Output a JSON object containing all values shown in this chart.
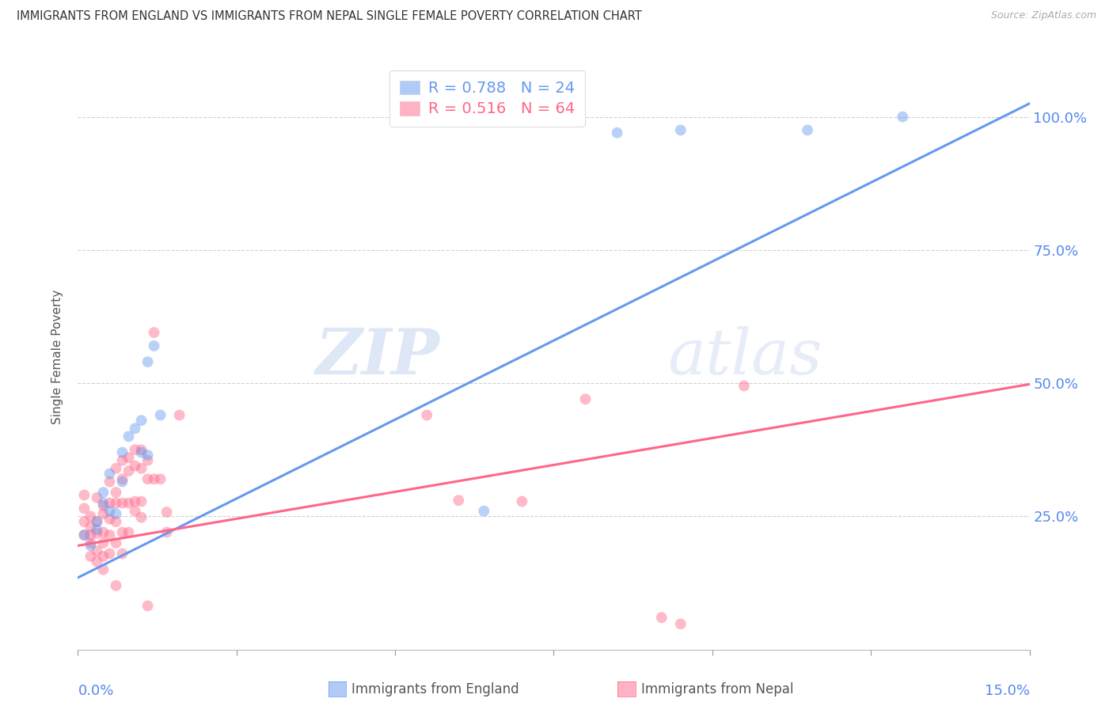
{
  "title": "IMMIGRANTS FROM ENGLAND VS IMMIGRANTS FROM NEPAL SINGLE FEMALE POVERTY CORRELATION CHART",
  "source": "Source: ZipAtlas.com",
  "ylabel": "Single Female Poverty",
  "xlim": [
    0.0,
    0.15
  ],
  "ylim": [
    0.0,
    1.1
  ],
  "yticks": [
    0.25,
    0.5,
    0.75,
    1.0
  ],
  "ytick_labels": [
    "25.0%",
    "50.0%",
    "75.0%",
    "100.0%"
  ],
  "watermark_zip": "ZIP",
  "watermark_atlas": "atlas",
  "england_color": "#6699ee",
  "nepal_color": "#ff6688",
  "england_R": "0.788",
  "england_N": "24",
  "nepal_R": "0.516",
  "nepal_N": "64",
  "england_points": [
    [
      0.001,
      0.215
    ],
    [
      0.002,
      0.195
    ],
    [
      0.003,
      0.24
    ],
    [
      0.003,
      0.225
    ],
    [
      0.004,
      0.295
    ],
    [
      0.004,
      0.275
    ],
    [
      0.005,
      0.33
    ],
    [
      0.005,
      0.26
    ],
    [
      0.006,
      0.255
    ],
    [
      0.007,
      0.315
    ],
    [
      0.007,
      0.37
    ],
    [
      0.008,
      0.4
    ],
    [
      0.009,
      0.415
    ],
    [
      0.01,
      0.43
    ],
    [
      0.01,
      0.37
    ],
    [
      0.011,
      0.365
    ],
    [
      0.011,
      0.54
    ],
    [
      0.012,
      0.57
    ],
    [
      0.013,
      0.44
    ],
    [
      0.064,
      0.26
    ],
    [
      0.085,
      0.97
    ],
    [
      0.095,
      0.975
    ],
    [
      0.115,
      0.975
    ],
    [
      0.13,
      1.0
    ]
  ],
  "nepal_points": [
    [
      0.001,
      0.24
    ],
    [
      0.001,
      0.215
    ],
    [
      0.001,
      0.265
    ],
    [
      0.001,
      0.29
    ],
    [
      0.002,
      0.175
    ],
    [
      0.002,
      0.23
    ],
    [
      0.002,
      0.25
    ],
    [
      0.002,
      0.215
    ],
    [
      0.002,
      0.2
    ],
    [
      0.003,
      0.285
    ],
    [
      0.003,
      0.24
    ],
    [
      0.003,
      0.218
    ],
    [
      0.003,
      0.185
    ],
    [
      0.003,
      0.165
    ],
    [
      0.004,
      0.27
    ],
    [
      0.004,
      0.255
    ],
    [
      0.004,
      0.22
    ],
    [
      0.004,
      0.2
    ],
    [
      0.004,
      0.175
    ],
    [
      0.004,
      0.15
    ],
    [
      0.005,
      0.315
    ],
    [
      0.005,
      0.275
    ],
    [
      0.005,
      0.245
    ],
    [
      0.005,
      0.215
    ],
    [
      0.005,
      0.18
    ],
    [
      0.006,
      0.34
    ],
    [
      0.006,
      0.295
    ],
    [
      0.006,
      0.275
    ],
    [
      0.006,
      0.24
    ],
    [
      0.006,
      0.2
    ],
    [
      0.006,
      0.12
    ],
    [
      0.007,
      0.355
    ],
    [
      0.007,
      0.32
    ],
    [
      0.007,
      0.275
    ],
    [
      0.007,
      0.22
    ],
    [
      0.007,
      0.18
    ],
    [
      0.008,
      0.36
    ],
    [
      0.008,
      0.335
    ],
    [
      0.008,
      0.275
    ],
    [
      0.008,
      0.22
    ],
    [
      0.009,
      0.375
    ],
    [
      0.009,
      0.345
    ],
    [
      0.009,
      0.278
    ],
    [
      0.009,
      0.26
    ],
    [
      0.01,
      0.375
    ],
    [
      0.01,
      0.34
    ],
    [
      0.01,
      0.278
    ],
    [
      0.01,
      0.248
    ],
    [
      0.011,
      0.355
    ],
    [
      0.011,
      0.32
    ],
    [
      0.011,
      0.082
    ],
    [
      0.012,
      0.595
    ],
    [
      0.012,
      0.32
    ],
    [
      0.013,
      0.32
    ],
    [
      0.014,
      0.258
    ],
    [
      0.014,
      0.22
    ],
    [
      0.016,
      0.44
    ],
    [
      0.055,
      0.44
    ],
    [
      0.06,
      0.28
    ],
    [
      0.07,
      0.278
    ],
    [
      0.08,
      0.47
    ],
    [
      0.092,
      0.06
    ],
    [
      0.095,
      0.048
    ],
    [
      0.105,
      0.495
    ]
  ],
  "england_line_x": [
    0.0,
    0.15
  ],
  "england_line_y": [
    0.135,
    1.025
  ],
  "nepal_line_x": [
    0.0,
    0.15
  ],
  "nepal_line_y": [
    0.195,
    0.498
  ],
  "background_color": "#ffffff",
  "grid_color": "#cccccc",
  "title_color": "#333333",
  "right_tick_color": "#5588ee",
  "bottom_tick_color": "#5588ee"
}
